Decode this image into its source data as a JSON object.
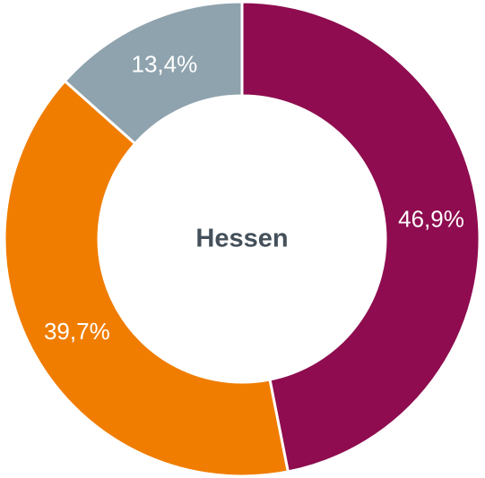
{
  "chart_data": {
    "type": "donut",
    "center_label": "Hessen",
    "categories": [
      null,
      null,
      null
    ],
    "values": [
      46.9,
      39.7,
      13.4
    ],
    "value_labels": [
      "46,9%",
      "39,7%",
      "13,4%"
    ],
    "colors": [
      "#8e0c4f",
      "#f07d00",
      "#8fa3ae"
    ]
  }
}
